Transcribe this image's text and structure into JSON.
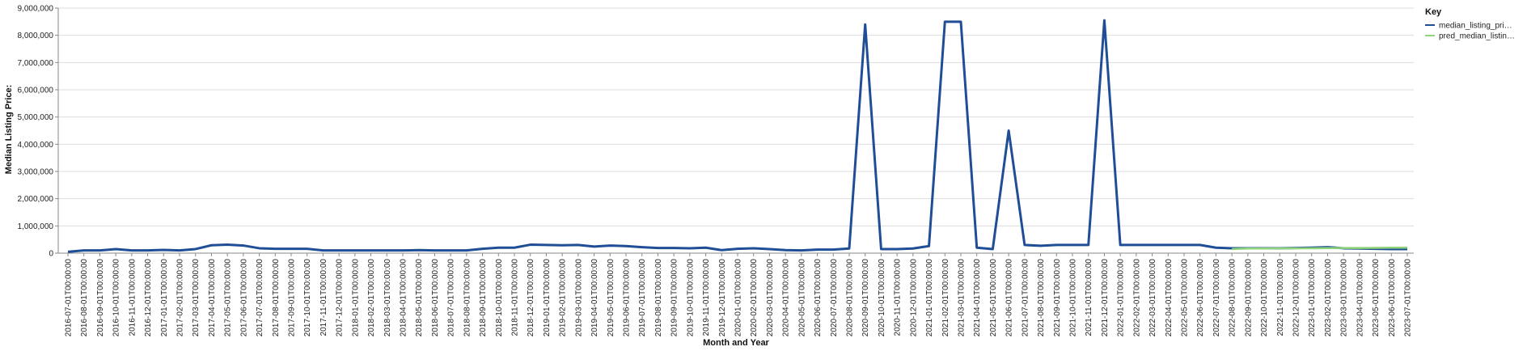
{
  "chart_data": {
    "type": "line",
    "xlabel": "Month and Year",
    "ylabel": "Median Listing Price:",
    "ylim": [
      0,
      9000000
    ],
    "y_ticks": [
      "0",
      "1,000,000",
      "2,000,000",
      "3,000,000",
      "4,000,000",
      "5,000,000",
      "6,000,000",
      "7,000,000",
      "8,000,000",
      "9,000,000"
    ],
    "y_tick_values": [
      0,
      1000000,
      2000000,
      3000000,
      4000000,
      5000000,
      6000000,
      7000000,
      8000000,
      9000000
    ],
    "grid": true,
    "legend_position": "right",
    "legend_title": "Key",
    "x": [
      "2016-07-01T00:00:00",
      "2016-08-01T00:00:00",
      "2016-09-01T00:00:00",
      "2016-10-01T00:00:00",
      "2016-11-01T00:00:00",
      "2016-12-01T00:00:00",
      "2017-01-01T00:00:00",
      "2017-02-01T00:00:00",
      "2017-03-01T00:00:00",
      "2017-04-01T00:00:00",
      "2017-05-01T00:00:00",
      "2017-06-01T00:00:00",
      "2017-07-01T00:00:00",
      "2017-08-01T00:00:00",
      "2017-09-01T00:00:00",
      "2017-10-01T00:00:00",
      "2017-11-01T00:00:00",
      "2017-12-01T00:00:00",
      "2018-01-01T00:00:00",
      "2018-02-01T00:00:00",
      "2018-03-01T00:00:00",
      "2018-04-01T00:00:00",
      "2018-05-01T00:00:00",
      "2018-06-01T00:00:00",
      "2018-07-01T00:00:00",
      "2018-08-01T00:00:00",
      "2018-09-01T00:00:00",
      "2018-10-01T00:00:00",
      "2018-11-01T00:00:00",
      "2018-12-01T00:00:00",
      "2019-01-01T00:00:00",
      "2019-02-01T00:00:00",
      "2019-03-01T00:00:00",
      "2019-04-01T00:00:00",
      "2019-05-01T00:00:00",
      "2019-06-01T00:00:00",
      "2019-07-01T00:00:00",
      "2019-08-01T00:00:00",
      "2019-09-01T00:00:00",
      "2019-10-01T00:00:00",
      "2019-11-01T00:00:00",
      "2019-12-01T00:00:00",
      "2020-01-01T00:00:00",
      "2020-02-01T00:00:00",
      "2020-03-01T00:00:00",
      "2020-04-01T00:00:00",
      "2020-05-01T00:00:00",
      "2020-06-01T00:00:00",
      "2020-07-01T00:00:00",
      "2020-08-01T00:00:00",
      "2020-09-01T00:00:00",
      "2020-10-01T00:00:00",
      "2020-11-01T00:00:00",
      "2020-12-01T00:00:00",
      "2021-01-01T00:00:00",
      "2021-02-01T00:00:00",
      "2021-03-01T00:00:00",
      "2021-04-01T00:00:00",
      "2021-05-01T00:00:00",
      "2021-06-01T00:00:00",
      "2021-07-01T00:00:00",
      "2021-08-01T00:00:00",
      "2021-09-01T00:00:00",
      "2021-10-01T00:00:00",
      "2021-11-01T00:00:00",
      "2021-12-01T00:00:00",
      "2022-01-01T00:00:00",
      "2022-02-01T00:00:00",
      "2022-03-01T00:00:00",
      "2022-04-01T00:00:00",
      "2022-05-01T00:00:00",
      "2022-06-01T00:00:00",
      "2022-07-01T00:00:00",
      "2022-08-01T00:00:00",
      "2022-09-01T00:00:00",
      "2022-10-01T00:00:00",
      "2022-11-01T00:00:00",
      "2022-12-01T00:00:00",
      "2023-01-01T00:00:00",
      "2023-02-01T00:00:00",
      "2023-03-01T00:00:00",
      "2023-04-01T00:00:00",
      "2023-05-01T00:00:00",
      "2023-06-01T00:00:00",
      "2023-07-01T00:00:00"
    ],
    "series": [
      {
        "name": "median_listing_pri…",
        "color": "#1f4e96",
        "values": [
          50000,
          100000,
          100000,
          150000,
          100000,
          100000,
          120000,
          100000,
          150000,
          290000,
          310000,
          280000,
          180000,
          160000,
          160000,
          160000,
          100000,
          100000,
          100000,
          100000,
          100000,
          100000,
          110000,
          100000,
          100000,
          100000,
          160000,
          200000,
          200000,
          310000,
          300000,
          290000,
          300000,
          240000,
          280000,
          260000,
          220000,
          190000,
          190000,
          180000,
          200000,
          110000,
          160000,
          180000,
          150000,
          110000,
          100000,
          130000,
          130000,
          170000,
          8400000,
          150000,
          150000,
          170000,
          260000,
          8500000,
          8500000,
          200000,
          150000,
          4500000,
          300000,
          270000,
          300000,
          300000,
          300000,
          8550000,
          300000,
          300000,
          300000,
          300000,
          300000,
          300000,
          200000,
          180000,
          180000,
          180000,
          180000,
          190000,
          200000,
          220000,
          180000,
          170000,
          160000,
          150000,
          150000
        ]
      },
      {
        "name": "pred_median_listin…",
        "color": "#8ed47a",
        "values": [
          null,
          null,
          null,
          null,
          null,
          null,
          null,
          null,
          null,
          null,
          null,
          null,
          null,
          null,
          null,
          null,
          null,
          null,
          null,
          null,
          null,
          null,
          null,
          null,
          null,
          null,
          null,
          null,
          null,
          null,
          null,
          null,
          null,
          null,
          null,
          null,
          null,
          null,
          null,
          null,
          null,
          null,
          null,
          null,
          null,
          null,
          null,
          null,
          null,
          null,
          null,
          null,
          null,
          null,
          null,
          null,
          null,
          null,
          null,
          null,
          null,
          null,
          null,
          null,
          null,
          null,
          null,
          null,
          null,
          null,
          null,
          null,
          null,
          150000,
          170000,
          170000,
          175000,
          180000,
          180000,
          185000,
          190000,
          190000,
          195000,
          200000,
          200000
        ]
      }
    ]
  }
}
